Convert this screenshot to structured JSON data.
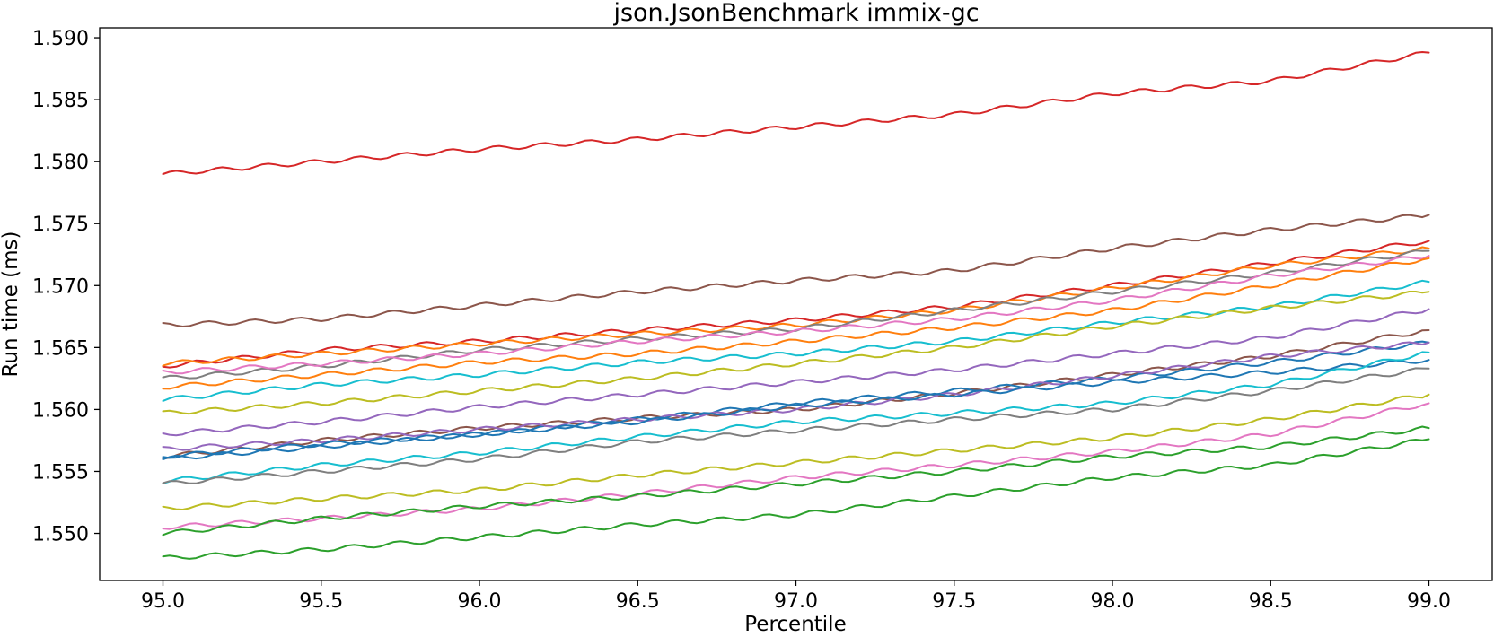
{
  "chart_data": {
    "type": "line",
    "title": "json.JsonBenchmark immix-gc",
    "xlabel": "Percentile",
    "ylabel": "Run time (ms)",
    "xlim": [
      94.8,
      99.2
    ],
    "ylim": [
      1.5462,
      1.5908
    ],
    "grid": false,
    "legend": "none",
    "x_ticks": [
      95.0,
      95.5,
      96.0,
      96.5,
      97.0,
      97.5,
      98.0,
      98.5,
      99.0
    ],
    "x_tick_labels": [
      "95.0",
      "95.5",
      "96.0",
      "96.5",
      "97.0",
      "97.5",
      "98.0",
      "98.5",
      "99.0"
    ],
    "y_ticks": [
      1.55,
      1.555,
      1.56,
      1.565,
      1.57,
      1.575,
      1.58,
      1.585,
      1.59
    ],
    "y_tick_labels": [
      "1.550",
      "1.555",
      "1.560",
      "1.565",
      "1.570",
      "1.575",
      "1.580",
      "1.585",
      "1.590"
    ],
    "x": [
      95.0,
      95.5,
      96.0,
      96.5,
      97.0,
      97.5,
      98.0,
      98.5,
      99.0
    ],
    "series": [
      {
        "color": "#d62728",
        "values": [
          1.579,
          1.58,
          1.581,
          1.5818,
          1.5828,
          1.5838,
          1.5855,
          1.5865,
          1.5888
        ]
      },
      {
        "color": "#8c564b",
        "values": [
          1.5668,
          1.5673,
          1.5684,
          1.5695,
          1.5704,
          1.5712,
          1.573,
          1.5745,
          1.5757
        ]
      },
      {
        "color": "#d62728",
        "values": [
          1.5635,
          1.5648,
          1.5655,
          1.5664,
          1.5672,
          1.5683,
          1.57,
          1.5718,
          1.5736
        ]
      },
      {
        "color": "#ff7f0e",
        "values": [
          1.5637,
          1.5645,
          1.5653,
          1.5661,
          1.5668,
          1.568,
          1.5698,
          1.5716,
          1.573
        ]
      },
      {
        "color": "#7f7f7f",
        "values": [
          1.5625,
          1.5635,
          1.5648,
          1.5657,
          1.5665,
          1.568,
          1.5695,
          1.571,
          1.5728
        ]
      },
      {
        "color": "#e377c2",
        "values": [
          1.563,
          1.5637,
          1.5645,
          1.5655,
          1.5663,
          1.5673,
          1.5688,
          1.5708,
          1.5724
        ]
      },
      {
        "color": "#ff7f0e",
        "values": [
          1.5618,
          1.5628,
          1.5638,
          1.5645,
          1.5655,
          1.5666,
          1.568,
          1.57,
          1.5722
        ]
      },
      {
        "color": "#17becf",
        "values": [
          1.5608,
          1.562,
          1.5628,
          1.5638,
          1.5645,
          1.5655,
          1.567,
          1.5683,
          1.5703
        ]
      },
      {
        "color": "#bcbd22",
        "values": [
          1.5597,
          1.5605,
          1.5615,
          1.5625,
          1.5637,
          1.565,
          1.5667,
          1.5682,
          1.5695
        ]
      },
      {
        "color": "#9467bd",
        "values": [
          1.558,
          1.559,
          1.5602,
          1.5612,
          1.5622,
          1.5632,
          1.5645,
          1.5658,
          1.5681
        ]
      },
      {
        "color": "#8c564b",
        "values": [
          1.5562,
          1.5575,
          1.5585,
          1.5593,
          1.56,
          1.5613,
          1.5628,
          1.5643,
          1.5664
        ]
      },
      {
        "color": "#1f77b4",
        "values": [
          1.556,
          1.557,
          1.558,
          1.5592,
          1.5605,
          1.5615,
          1.5625,
          1.5638,
          1.5654
        ]
      },
      {
        "color": "#9467bd",
        "values": [
          1.5568,
          1.5575,
          1.5584,
          1.5592,
          1.56,
          1.5612,
          1.5627,
          1.5643,
          1.5654
        ]
      },
      {
        "color": "#1f77b4",
        "values": [
          1.5562,
          1.5572,
          1.558,
          1.559,
          1.5603,
          1.5612,
          1.5622,
          1.563,
          1.564
        ]
      },
      {
        "color": "#17becf",
        "values": [
          1.5542,
          1.5555,
          1.5565,
          1.5578,
          1.559,
          1.5597,
          1.5605,
          1.562,
          1.5646
        ]
      },
      {
        "color": "#7f7f7f",
        "values": [
          1.554,
          1.555,
          1.556,
          1.5574,
          1.5583,
          1.5592,
          1.56,
          1.5615,
          1.5633
        ]
      },
      {
        "color": "#bcbd22",
        "values": [
          1.552,
          1.5528,
          1.5535,
          1.5547,
          1.5557,
          1.5567,
          1.5577,
          1.5592,
          1.5612
        ]
      },
      {
        "color": "#e377c2",
        "values": [
          1.5505,
          1.5512,
          1.552,
          1.5532,
          1.5545,
          1.5555,
          1.5566,
          1.558,
          1.5605
        ]
      },
      {
        "color": "#2ca02c",
        "values": [
          1.55,
          1.5512,
          1.5522,
          1.553,
          1.554,
          1.555,
          1.5562,
          1.557,
          1.5585
        ]
      },
      {
        "color": "#2ca02c",
        "values": [
          1.548,
          1.5487,
          1.5497,
          1.5507,
          1.5515,
          1.553,
          1.5545,
          1.5555,
          1.5576
        ]
      }
    ]
  }
}
